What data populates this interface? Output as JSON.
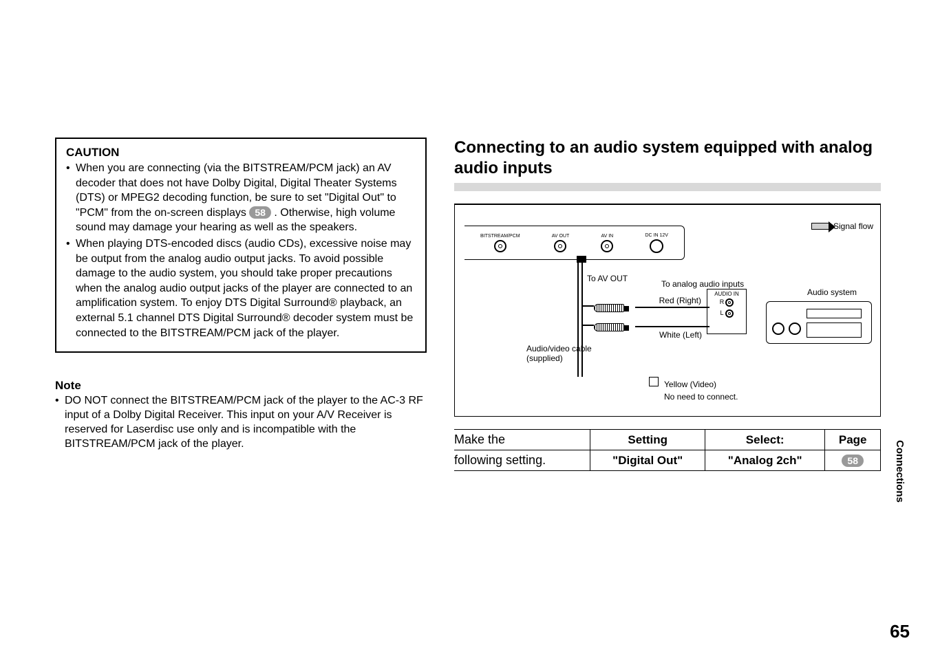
{
  "caution": {
    "title": "CAUTION",
    "items": [
      {
        "pre": "When you are connecting (via the BITSTREAM/PCM jack) an AV decoder that does not have Dolby Digital, Digital Theater Systems (DTS) or MPEG2 decoding function, be sure to set \"Digital Out\" to \"PCM\" from the on-screen displays ",
        "pill": "58",
        "post": " . Otherwise, high volume sound may damage your hearing as well as the speakers."
      },
      {
        "pre": "When playing DTS-encoded discs (audio CDs), excessive noise may be output from the analog audio output jacks. To avoid possible damage to the audio system, you should take proper precautions when the analog audio output jacks of the player are connected to an amplification system. To enjoy DTS Digital Surround® playback, an external 5.1 channel DTS Digital Surround® decoder system must be connected to the BITSTREAM/PCM jack of the player.",
        "pill": "",
        "post": ""
      }
    ]
  },
  "note": {
    "title": "Note",
    "items": [
      "DO NOT connect the BITSTREAM/PCM jack of the player to the AC-3 RF input of a Dolby Digital Receiver. This input on your A/V Receiver is reserved for Laserdisc use only and is incompatible with the BITSTREAM/PCM jack of the player."
    ]
  },
  "section_title": "Connecting to an audio system equipped with analog audio inputs",
  "diagram": {
    "signal_flow": "Signal flow",
    "jacks": {
      "bitstream": "BITSTREAM/PCM",
      "avout": "AV OUT",
      "avin": "AV IN",
      "dc": "DC IN 12V"
    },
    "to_avout": "To AV OUT",
    "to_analog": "To analog audio inputs",
    "red": "Red (Right)",
    "white": "White (Left)",
    "avcable": "Audio/video cable\n(supplied)",
    "yellow": "Yellow (Video)",
    "noneed": "No need to connect.",
    "audio_in": "AUDIO IN",
    "r": "R",
    "l": "L",
    "audio_system": "Audio system"
  },
  "table": {
    "lead1": "Make the",
    "lead2": "following setting.",
    "h_setting": "Setting",
    "h_select": "Select:",
    "h_page": "Page",
    "v_setting": "\"Digital Out\"",
    "v_select": "\"Analog 2ch\"",
    "v_page": "58"
  },
  "side_tab": "Connections",
  "page_number": "65"
}
